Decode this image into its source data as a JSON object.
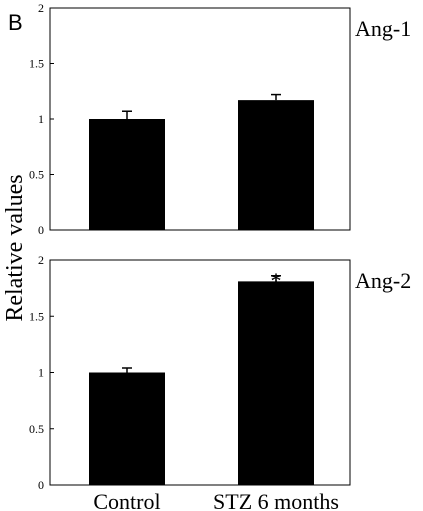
{
  "figure": {
    "panel_letter": "B",
    "ylabel": "Relative values"
  },
  "chart_data": [
    {
      "type": "bar",
      "series_label": "Ang-1",
      "categories": [
        "Control",
        "STZ 6 months"
      ],
      "values": [
        1.0,
        1.17
      ],
      "errors": [
        0.07,
        0.05
      ],
      "annotations": [
        "",
        ""
      ],
      "ylim": [
        0,
        2
      ],
      "yticks": [
        "0",
        "0.5",
        "1",
        "1.5",
        "2"
      ],
      "ytick_values": [
        0,
        0.5,
        1,
        1.5,
        2
      ],
      "show_xtick_labels": false
    },
    {
      "type": "bar",
      "series_label": "Ang-2",
      "categories": [
        "Control",
        "STZ 6 months"
      ],
      "values": [
        1.0,
        1.81
      ],
      "errors": [
        0.04,
        0.05
      ],
      "annotations": [
        "",
        "*"
      ],
      "ylim": [
        0,
        2
      ],
      "yticks": [
        "0",
        "0.5",
        "1",
        "1.5",
        "2"
      ],
      "ytick_values": [
        0,
        0.5,
        1,
        1.5,
        2
      ],
      "show_xtick_labels": true
    }
  ]
}
